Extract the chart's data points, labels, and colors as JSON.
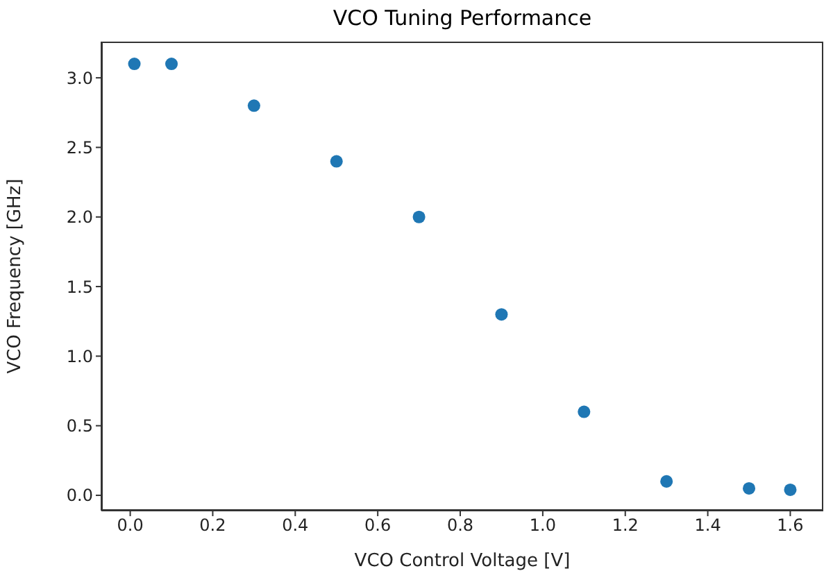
{
  "chart_data": {
    "type": "scatter",
    "title": "VCO Tuning Performance",
    "xlabel": "VCO Control Voltage [V]",
    "ylabel": "VCO Frequency [GHz]",
    "x": [
      0.01,
      0.1,
      0.3,
      0.5,
      0.7,
      0.9,
      1.1,
      1.3,
      1.5,
      1.6
    ],
    "series": [
      {
        "color": "#1f77b4",
        "values": [
          3.1,
          3.1,
          2.8,
          2.4,
          2.0,
          1.3,
          0.6,
          0.1,
          0.05,
          0.04
        ]
      }
    ],
    "xlim": [
      -0.07,
      1.68
    ],
    "ylim": [
      -0.11,
      3.26
    ],
    "xticks": [
      {
        "value": 0,
        "label": "0.0"
      },
      {
        "value": 0.2,
        "label": "0.2"
      },
      {
        "value": 0.4,
        "label": "0.4"
      },
      {
        "value": 0.6,
        "label": "0.6"
      },
      {
        "value": 0.8,
        "label": "0.8"
      },
      {
        "value": 1,
        "label": "1.0"
      },
      {
        "value": 1.2,
        "label": "1.2"
      },
      {
        "value": 1.4,
        "label": "1.4"
      },
      {
        "value": 1.6,
        "label": "1.6"
      }
    ],
    "yticks": [
      {
        "value": 0,
        "label": "0.0"
      },
      {
        "value": 0.5,
        "label": "0.5"
      },
      {
        "value": 1,
        "label": "1.0"
      },
      {
        "value": 1.5,
        "label": "1.5"
      },
      {
        "value": 2,
        "label": "2.0"
      },
      {
        "value": 2.5,
        "label": "2.5"
      },
      {
        "value": 3,
        "label": "3.0"
      }
    ],
    "grid": false,
    "legend": false,
    "marker": "circle"
  }
}
